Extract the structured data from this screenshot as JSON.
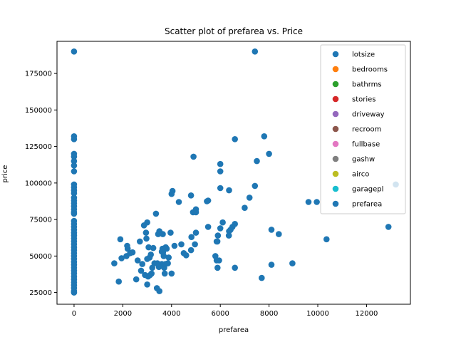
{
  "chart_data": {
    "type": "scatter",
    "title": "Scatter plot of prefarea vs. Price",
    "xlabel": "prefarea",
    "ylabel": "price",
    "xlim": [
      -700,
      13800
    ],
    "ylim": [
      17000,
      197000
    ],
    "xticks": [
      0,
      2000,
      4000,
      6000,
      8000,
      10000,
      12000
    ],
    "yticks": [
      25000,
      50000,
      75000,
      100000,
      125000,
      150000,
      175000
    ],
    "grid": false,
    "legend_position": "top-right",
    "series": [
      {
        "name": "lotsize",
        "color": "#1f77b4",
        "points": [
          [
            7420,
            190000
          ],
          [
            8960,
            45000
          ],
          [
            9960,
            87000
          ],
          [
            7500,
            115000
          ],
          [
            7420,
            98000
          ],
          [
            6600,
            130000
          ],
          [
            6600,
            72000
          ],
          [
            8100,
            68000
          ],
          [
            8000,
            120000
          ],
          [
            7800,
            132000
          ],
          [
            12900,
            70000
          ],
          [
            10360,
            61500
          ],
          [
            13200,
            99000
          ],
          [
            9620,
            87000
          ],
          [
            8400,
            65000
          ],
          [
            8100,
            44000
          ],
          [
            7700,
            35000
          ],
          [
            7200,
            90000
          ],
          [
            7000,
            83000
          ],
          [
            6600,
            42000
          ],
          [
            6500,
            70000
          ],
          [
            6420,
            68000
          ],
          [
            6360,
            67000
          ],
          [
            6350,
            64000
          ],
          [
            6360,
            95000
          ],
          [
            6000,
            108000
          ],
          [
            6000,
            113000
          ],
          [
            6000,
            96500
          ],
          [
            6000,
            69000
          ],
          [
            6100,
            73000
          ],
          [
            5950,
            47000
          ],
          [
            5885,
            42000
          ],
          [
            5850,
            60000
          ],
          [
            5900,
            64000
          ],
          [
            5800,
            50000
          ],
          [
            5850,
            47000
          ],
          [
            5880,
            60000
          ],
          [
            5500,
            70000
          ],
          [
            5500,
            88000
          ],
          [
            5450,
            87500
          ],
          [
            5000,
            66000
          ],
          [
            4960,
            58000
          ],
          [
            4900,
            118000
          ],
          [
            4880,
            80000
          ],
          [
            4800,
            91500
          ],
          [
            4815,
            63000
          ],
          [
            5000,
            82000
          ],
          [
            5000,
            80000
          ],
          [
            4800,
            54000
          ],
          [
            4600,
            50500
          ],
          [
            4500,
            52000
          ],
          [
            4400,
            58000
          ],
          [
            4300,
            87000
          ],
          [
            4120,
            57000
          ],
          [
            4040,
            94500
          ],
          [
            4000,
            92500
          ],
          [
            4000,
            38000
          ],
          [
            3960,
            66000
          ],
          [
            3880,
            49000
          ],
          [
            3850,
            45000
          ],
          [
            3800,
            55000
          ],
          [
            3760,
            56000
          ],
          [
            3750,
            44500
          ],
          [
            3720,
            38000
          ],
          [
            3700,
            42000
          ],
          [
            3680,
            50000
          ],
          [
            3650,
            52500
          ],
          [
            3640,
            65000
          ],
          [
            3630,
            55000
          ],
          [
            3600,
            44500
          ],
          [
            3600,
            53000
          ],
          [
            3500,
            67000
          ],
          [
            3500,
            26000
          ],
          [
            3480,
            42500
          ],
          [
            3450,
            65000
          ],
          [
            3420,
            45000
          ],
          [
            3400,
            28000
          ],
          [
            3360,
            79000
          ],
          [
            3300,
            45000
          ],
          [
            3250,
            55500
          ],
          [
            3210,
            42000
          ],
          [
            3180,
            38000
          ],
          [
            3150,
            51000
          ],
          [
            3120,
            37000
          ],
          [
            3100,
            49000
          ],
          [
            3060,
            56000
          ],
          [
            3040,
            36000
          ],
          [
            3000,
            48000
          ],
          [
            3000,
            30500
          ],
          [
            3000,
            73000
          ],
          [
            2970,
            62000
          ],
          [
            2950,
            66000
          ],
          [
            2910,
            37000
          ],
          [
            2870,
            71000
          ],
          [
            2800,
            44500
          ],
          [
            2750,
            40000
          ],
          [
            2700,
            60000
          ],
          [
            2610,
            47000
          ],
          [
            2550,
            34000
          ],
          [
            2400,
            52500
          ],
          [
            2300,
            52000
          ],
          [
            2200,
            55000
          ],
          [
            2180,
            57000
          ],
          [
            2150,
            50000
          ],
          [
            1950,
            48500
          ],
          [
            1900,
            61500
          ],
          [
            1836,
            32500
          ],
          [
            1650,
            45000
          ]
        ]
      },
      {
        "name": "bedrooms",
        "color": "#ff7f0e",
        "points": []
      },
      {
        "name": "bathrms",
        "color": "#2ca02c",
        "points": []
      },
      {
        "name": "stories",
        "color": "#d62728",
        "points": []
      },
      {
        "name": "driveway",
        "color": "#9467bd",
        "points": []
      },
      {
        "name": "recroom",
        "color": "#8c564b",
        "points": []
      },
      {
        "name": "fullbase",
        "color": "#e377c2",
        "points": []
      },
      {
        "name": "gashw",
        "color": "#7f7f7f",
        "points": []
      },
      {
        "name": "airco",
        "color": "#bcbd22",
        "points": []
      },
      {
        "name": "garagepl",
        "color": "#17becf",
        "points": []
      },
      {
        "name": "prefarea",
        "color": "#1f77b4",
        "points": [
          [
            0,
            190000
          ],
          [
            0,
            132000
          ],
          [
            0,
            130000
          ],
          [
            0,
            120000
          ],
          [
            0,
            118000
          ],
          [
            0,
            115000
          ],
          [
            0,
            112000
          ],
          [
            0,
            108000
          ],
          [
            0,
            99000
          ],
          [
            0,
            97000
          ],
          [
            0,
            95000
          ],
          [
            0,
            93000
          ],
          [
            0,
            90000
          ],
          [
            0,
            88000
          ],
          [
            0,
            86000
          ],
          [
            0,
            84000
          ],
          [
            0,
            82000
          ],
          [
            0,
            80000
          ],
          [
            0,
            79000
          ],
          [
            0,
            74000
          ],
          [
            0,
            72000
          ],
          [
            0,
            70000
          ],
          [
            0,
            68000
          ],
          [
            0,
            66000
          ],
          [
            0,
            64000
          ],
          [
            0,
            62000
          ],
          [
            0,
            60000
          ],
          [
            0,
            58000
          ],
          [
            0,
            56000
          ],
          [
            0,
            54000
          ],
          [
            0,
            52000
          ],
          [
            0,
            50000
          ],
          [
            0,
            48000
          ],
          [
            0,
            46000
          ],
          [
            0,
            44000
          ],
          [
            0,
            42000
          ],
          [
            0,
            40000
          ],
          [
            0,
            38000
          ],
          [
            0,
            36000
          ],
          [
            0,
            34000
          ],
          [
            0,
            32000
          ],
          [
            0,
            30000
          ],
          [
            0,
            28000
          ],
          [
            0,
            26000
          ],
          [
            0,
            25000
          ]
        ]
      }
    ]
  }
}
